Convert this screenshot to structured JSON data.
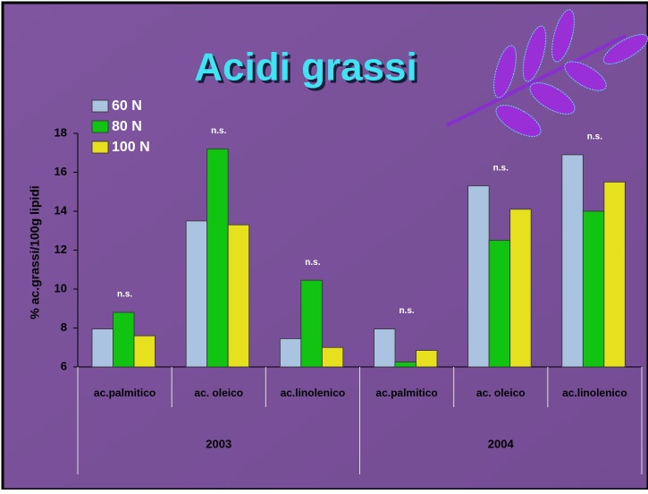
{
  "chart_data": {
    "type": "bar",
    "title": "Acidi grassi",
    "y_label": "% ac.grassi/100g lipidi",
    "categories": [
      "ac.palmitico",
      "ac. oleico",
      "ac.linolenico",
      "ac.palmitico",
      "ac. oleico",
      "ac.linolenico"
    ],
    "groups": [
      "2003",
      "2004"
    ],
    "annotations": [
      "n.s.",
      "n.s.",
      "n.s.",
      "n.s.",
      "n.s.",
      "n.s."
    ],
    "series": [
      {
        "name": "60 N",
        "color": "#a9c3e0",
        "values": [
          7.95,
          13.5,
          7.45,
          7.95,
          15.3,
          16.9
        ]
      },
      {
        "name": "80 N",
        "color": "#12c412",
        "values": [
          8.8,
          17.2,
          10.45,
          6.25,
          12.5,
          14.0
        ]
      },
      {
        "name": "100 N",
        "color": "#e6e01e",
        "values": [
          7.6,
          13.3,
          7.0,
          6.85,
          14.1,
          15.5
        ]
      }
    ],
    "ylim": [
      6,
      18
    ],
    "yticks": [
      6,
      8,
      10,
      12,
      14,
      16,
      18
    ]
  }
}
